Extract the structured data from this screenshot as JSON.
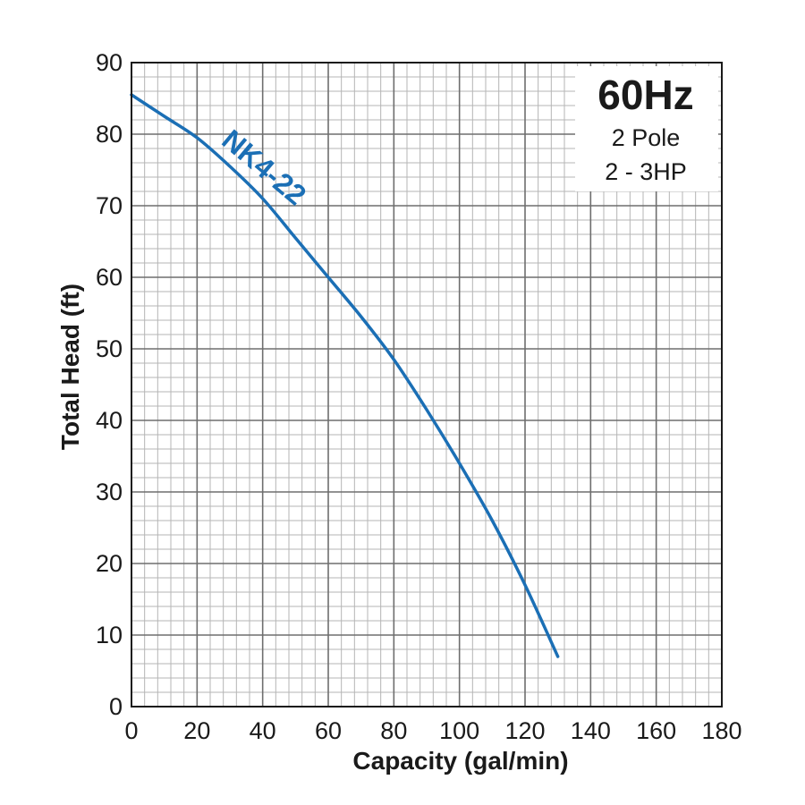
{
  "chart_data": {
    "type": "line",
    "xlabel": "Capacity (gal/min)",
    "ylabel": "Total Head (ft)",
    "xlim": [
      0,
      180
    ],
    "ylim": [
      0,
      90
    ],
    "x_ticks": [
      "0",
      "20",
      "40",
      "60",
      "80",
      "100",
      "120",
      "140",
      "160",
      "180"
    ],
    "y_ticks": [
      "0",
      "10",
      "20",
      "30",
      "40",
      "50",
      "60",
      "70",
      "80",
      "90"
    ],
    "grid": true,
    "series": [
      {
        "name": "NK4-22",
        "color": "#1b6fb5",
        "points": [
          [
            0,
            85.5
          ],
          [
            10,
            82.5
          ],
          [
            20,
            79.5
          ],
          [
            30,
            75.5
          ],
          [
            40,
            71
          ],
          [
            50,
            65.5
          ],
          [
            60,
            60
          ],
          [
            70,
            54.5
          ],
          [
            80,
            48.5
          ],
          [
            90,
            41.5
          ],
          [
            100,
            34
          ],
          [
            110,
            26
          ],
          [
            120,
            17
          ],
          [
            130,
            7
          ]
        ]
      }
    ],
    "info_box": {
      "frequency": "60Hz",
      "poles": "2 Pole",
      "power": "2 - 3HP"
    }
  }
}
